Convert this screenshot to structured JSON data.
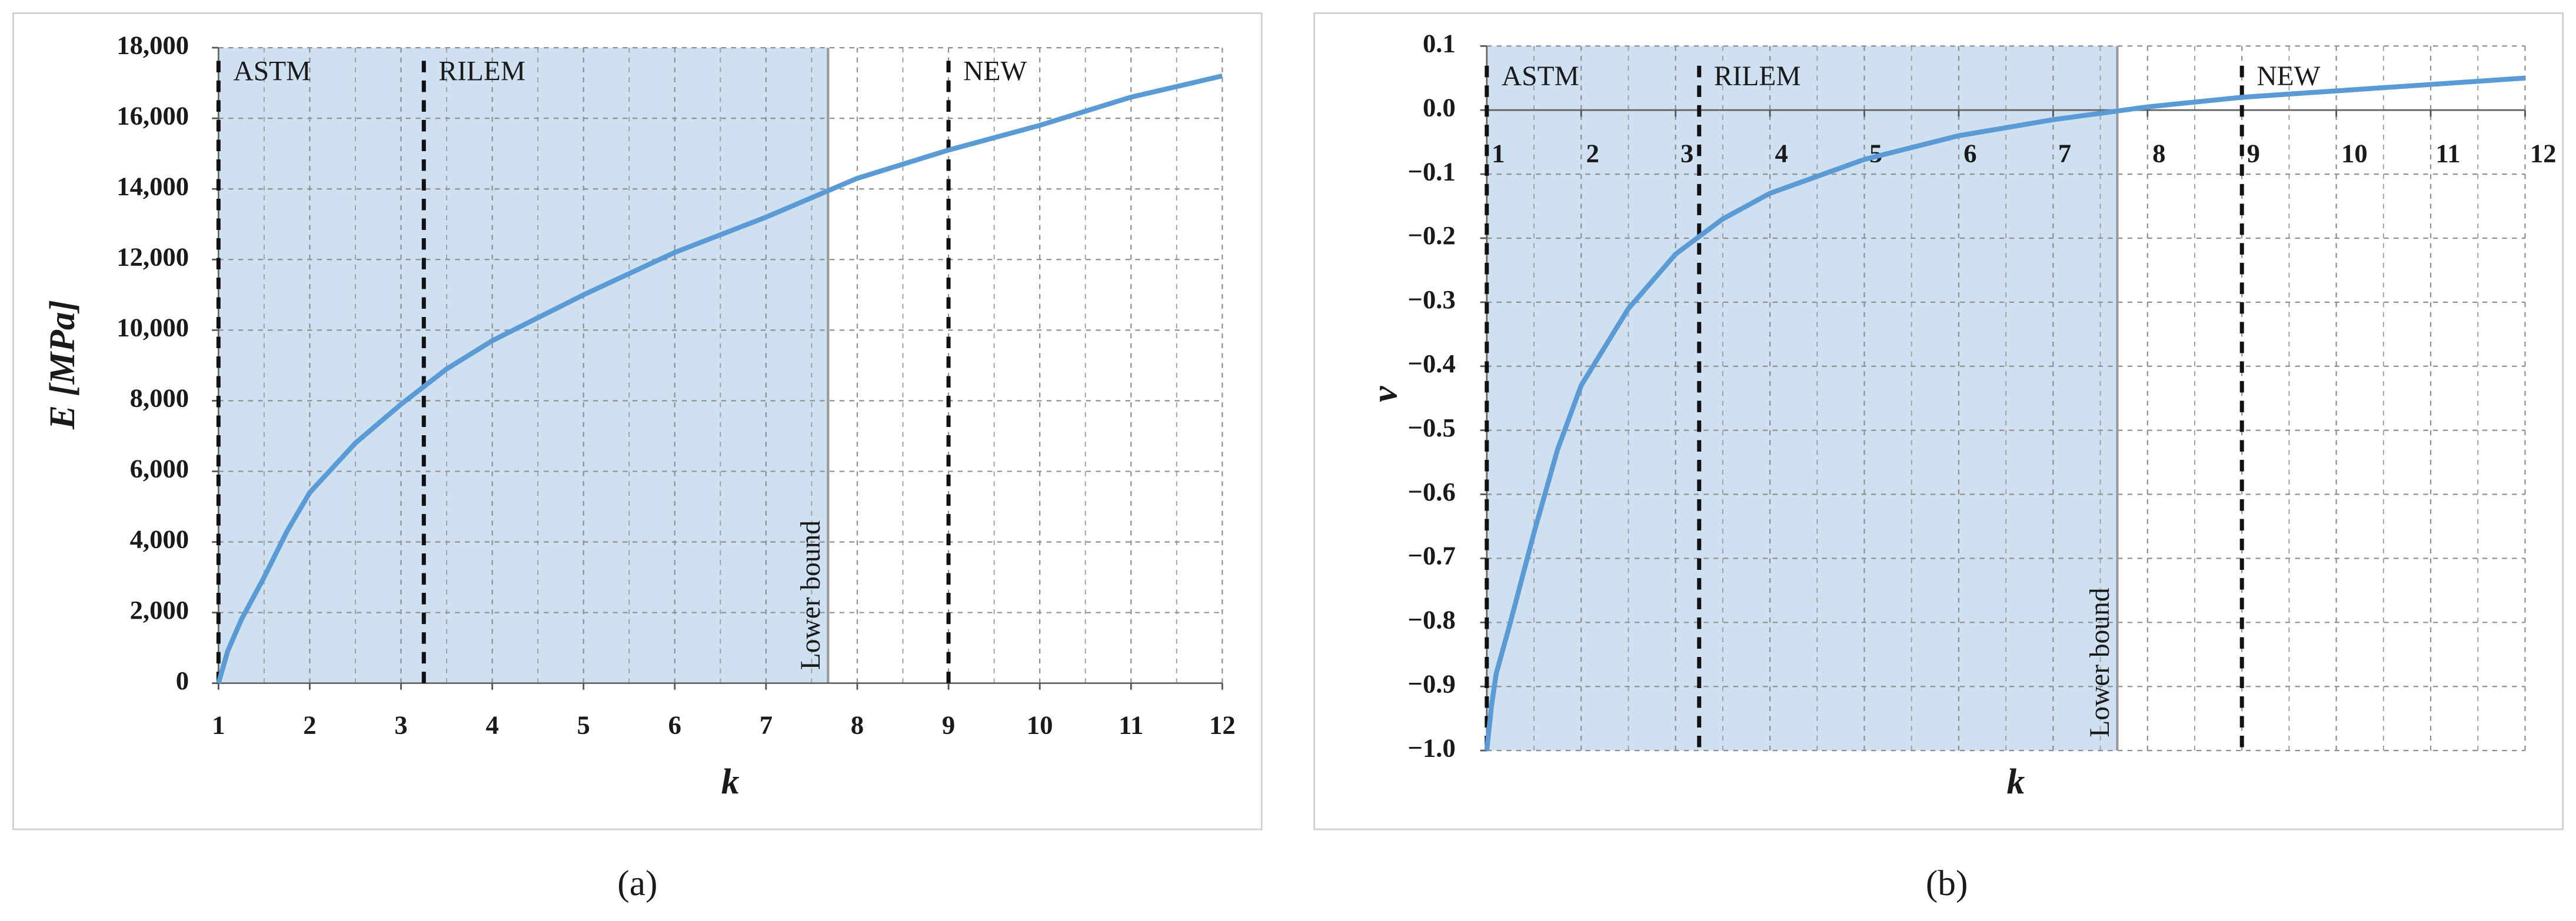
{
  "chart_data": [
    {
      "type": "line",
      "caption": "(a)",
      "x_label": "k",
      "y_label": "E  [MPa]",
      "xlim": [
        1,
        12
      ],
      "xticks": [
        1,
        2,
        3,
        4,
        5,
        6,
        7,
        8,
        9,
        10,
        11,
        12
      ],
      "ylim": [
        0,
        18000
      ],
      "yticks": [
        0,
        {
          "value": 2000,
          "label": "2,000"
        },
        {
          "value": 4000,
          "label": "4,000"
        },
        {
          "value": 6000,
          "label": "6,000"
        },
        {
          "value": 8000,
          "label": "8,000"
        },
        {
          "value": 10000,
          "label": "10,000"
        },
        {
          "value": 12000,
          "label": "12,000"
        },
        {
          "value": 14000,
          "label": "14,000"
        },
        {
          "value": 16000,
          "label": "16,000"
        },
        {
          "value": 18000,
          "label": "18,000"
        }
      ],
      "grid": true,
      "shaded_region": {
        "x": [
          1,
          7.68
        ],
        "color": "#cfe0f1",
        "label": "Lower bound"
      },
      "reference_lines": [
        {
          "label": "ASTM",
          "x": 1
        },
        {
          "label": "RILEM",
          "x": 3.25
        },
        {
          "label": "NEW",
          "x": 9
        }
      ],
      "series": [
        {
          "color": "#5b9bd5",
          "x": [
            1,
            1.05,
            1.1,
            1.25,
            1.5,
            1.75,
            2,
            2.5,
            3,
            3.5,
            4,
            5,
            6,
            7,
            8,
            9,
            10,
            11,
            12
          ],
          "values": [
            0,
            450,
            900,
            1800,
            3000,
            4300,
            5400,
            6800,
            7900,
            8900,
            9700,
            11000,
            12200,
            13200,
            14300,
            15100,
            15800,
            16600,
            17200
          ]
        }
      ]
    },
    {
      "type": "line",
      "caption": "(b)",
      "x_label": "k",
      "y_label": "ν",
      "xlim": [
        1,
        12
      ],
      "xticks": [
        1,
        2,
        3,
        4,
        5,
        6,
        7,
        8,
        9,
        10,
        11,
        12
      ],
      "ylim": [
        -1.0,
        0.1
      ],
      "xaxis_crosses": 0,
      "yticks": [
        {
          "value": -1.0,
          "label": "−1.0"
        },
        {
          "value": -0.9,
          "label": "−0.9"
        },
        {
          "value": -0.8,
          "label": "−0.8"
        },
        {
          "value": -0.7,
          "label": "−0.7"
        },
        {
          "value": -0.6,
          "label": "−0.6"
        },
        {
          "value": -0.5,
          "label": "−0.5"
        },
        {
          "value": -0.4,
          "label": "−0.4"
        },
        {
          "value": -0.3,
          "label": "−0.3"
        },
        {
          "value": -0.2,
          "label": "−0.2"
        },
        {
          "value": -0.1,
          "label": "−0.1"
        },
        {
          "value": 0,
          "label": "0.0"
        },
        0.1
      ],
      "grid": true,
      "shaded_region": {
        "x": [
          1,
          7.68
        ],
        "color": "#cfe0f1",
        "label": "Lower bound"
      },
      "reference_lines": [
        {
          "label": "ASTM",
          "x": 1
        },
        {
          "label": "RILEM",
          "x": 3.25
        },
        {
          "label": "NEW",
          "x": 9
        }
      ],
      "series": [
        {
          "color": "#5b9bd5",
          "x": [
            1,
            1.05,
            1.1,
            1.25,
            1.5,
            1.75,
            2,
            2.5,
            3,
            3.5,
            4,
            5,
            6,
            7,
            8,
            9,
            10,
            11,
            12
          ],
          "values": [
            -1.0,
            -0.93,
            -0.88,
            -0.8,
            -0.66,
            -0.53,
            -0.43,
            -0.31,
            -0.225,
            -0.17,
            -0.13,
            -0.077,
            -0.04,
            -0.015,
            0.005,
            0.02,
            0.03,
            0.04,
            0.05
          ]
        }
      ]
    }
  ]
}
